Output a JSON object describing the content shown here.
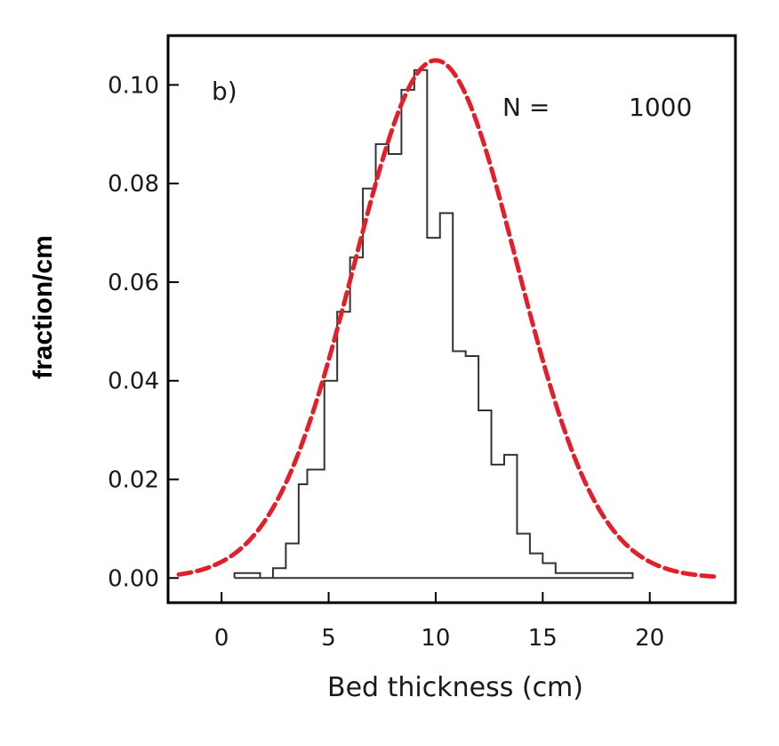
{
  "chart_data": {
    "type": "bar",
    "panel_label": "b)",
    "annotation": {
      "label": "N =",
      "value": "1000"
    },
    "xlabel": "Bed thickness (cm)",
    "ylabel": "fraction/cm",
    "xlim": [
      -2.5,
      24
    ],
    "ylim": [
      -0.005,
      0.11
    ],
    "xticks": [
      0,
      5,
      10,
      15,
      20
    ],
    "xtick_labels": [
      "0",
      "5",
      "10",
      "15",
      "20"
    ],
    "yticks": [
      0,
      0.02,
      0.04,
      0.06,
      0.08,
      0.1
    ],
    "ytick_labels": [
      "0.00",
      "0.02",
      "0.04",
      "0.06",
      "0.08",
      "0.10"
    ],
    "grid": false,
    "series": [
      {
        "style": "step-histogram",
        "color": "#333333",
        "bin_edges": [
          0.6,
          1.8,
          2.4,
          3.0,
          3.6,
          4.0,
          4.8,
          5.4,
          6.0,
          6.6,
          7.2,
          7.8,
          8.4,
          9.0,
          9.6,
          10.2,
          10.8,
          11.4,
          12.0,
          12.6,
          13.2,
          13.8,
          14.4,
          15.0,
          15.6,
          16.2,
          16.8,
          17.4,
          18.0,
          18.6,
          19.2
        ],
        "values": [
          0.001,
          0.0,
          0.002,
          0.007,
          0.019,
          0.022,
          0.04,
          0.054,
          0.065,
          0.079,
          0.088,
          0.086,
          0.099,
          0.103,
          0.069,
          0.074,
          0.046,
          0.045,
          0.034,
          0.023,
          0.025,
          0.009,
          0.005,
          0.003,
          0.001,
          0.001,
          0.001,
          0.001,
          0.001,
          0.001
        ]
      },
      {
        "style": "dashed-curve",
        "color": "#e0202a",
        "curve": "normal",
        "mean": 10.0,
        "sd": 3.8,
        "x_range": [
          -2,
          23
        ]
      }
    ]
  }
}
